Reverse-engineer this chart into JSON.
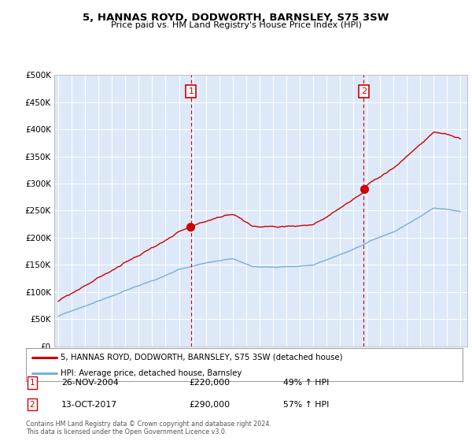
{
  "title": "5, HANNAS ROYD, DODWORTH, BARNSLEY, S75 3SW",
  "subtitle": "Price paid vs. HM Land Registry's House Price Index (HPI)",
  "legend_label_red": "5, HANNAS ROYD, DODWORTH, BARNSLEY, S75 3SW (detached house)",
  "legend_label_blue": "HPI: Average price, detached house, Barnsley",
  "transaction1_label": "1",
  "transaction1_date": "26-NOV-2004",
  "transaction1_price": "£220,000",
  "transaction1_hpi": "49% ↑ HPI",
  "transaction1_year": 2004.9,
  "transaction1_value": 220000,
  "transaction2_label": "2",
  "transaction2_date": "13-OCT-2017",
  "transaction2_price": "£290,000",
  "transaction2_hpi": "57% ↑ HPI",
  "transaction2_year": 2017.78,
  "transaction2_value": 290000,
  "footer": "Contains HM Land Registry data © Crown copyright and database right 2024.\nThis data is licensed under the Open Government Licence v3.0.",
  "ylim": [
    0,
    500000
  ],
  "xlim_start": 1994.7,
  "xlim_end": 2025.5,
  "plot_bg_color": "#dde8f8",
  "grid_color": "#ffffff",
  "red_color": "#cc0000",
  "blue_color": "#7bafd4",
  "marker_border_color": "#cc0000",
  "marker_text_color": "#cc0000"
}
